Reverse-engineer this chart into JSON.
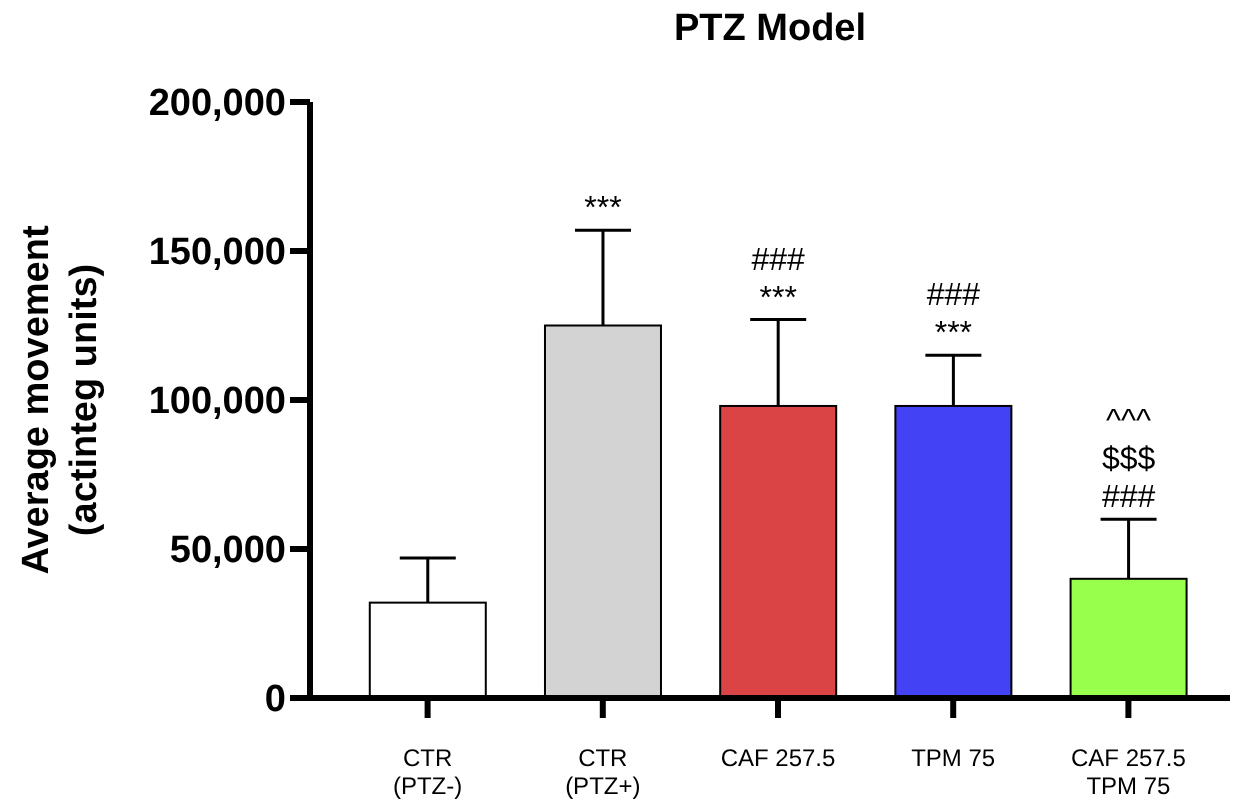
{
  "chart_data": {
    "type": "bar",
    "title": "PTZ Model",
    "ylabel": "Average movement\n(actinteg units)",
    "categories": [
      "CTR\n(PTZ-)",
      "CTR\n(PTZ+)",
      "CAF 257.5",
      "TPM 75",
      "CAF 257.5\nTPM 75"
    ],
    "values": [
      32000,
      125000,
      98000,
      98000,
      40000
    ],
    "colors": [
      "#ffffff",
      "#d3d3d3",
      "#db4444",
      "#4343f5",
      "#99ff4d"
    ],
    "errors": [
      [
        32000,
        47000
      ],
      [
        125000,
        157000
      ],
      [
        98000,
        127000
      ],
      [
        98000,
        115000
      ],
      [
        40000,
        60000
      ]
    ],
    "ylim": [
      0,
      200000
    ],
    "yticks": [
      0,
      {
        "value": 50000,
        "label": "50,000"
      },
      {
        "value": 100000,
        "label": "100,000"
      },
      {
        "value": 150000,
        "label": "150,000"
      },
      {
        "value": 200000,
        "label": "200,000"
      }
    ],
    "grid": false,
    "legend": false,
    "annotations": [
      {
        "text": "***",
        "x": "CTR\n(PTZ+)",
        "y": 157000
      },
      {
        "text": "###\n***",
        "x": "CAF 257.5",
        "y": 127000
      },
      {
        "text": "###\n***",
        "x": "TPM 75",
        "y": 115000
      },
      {
        "text": "^^^\n$$$\n###",
        "x": "CAF 257.5\nTPM 75",
        "y": 60000
      }
    ]
  }
}
